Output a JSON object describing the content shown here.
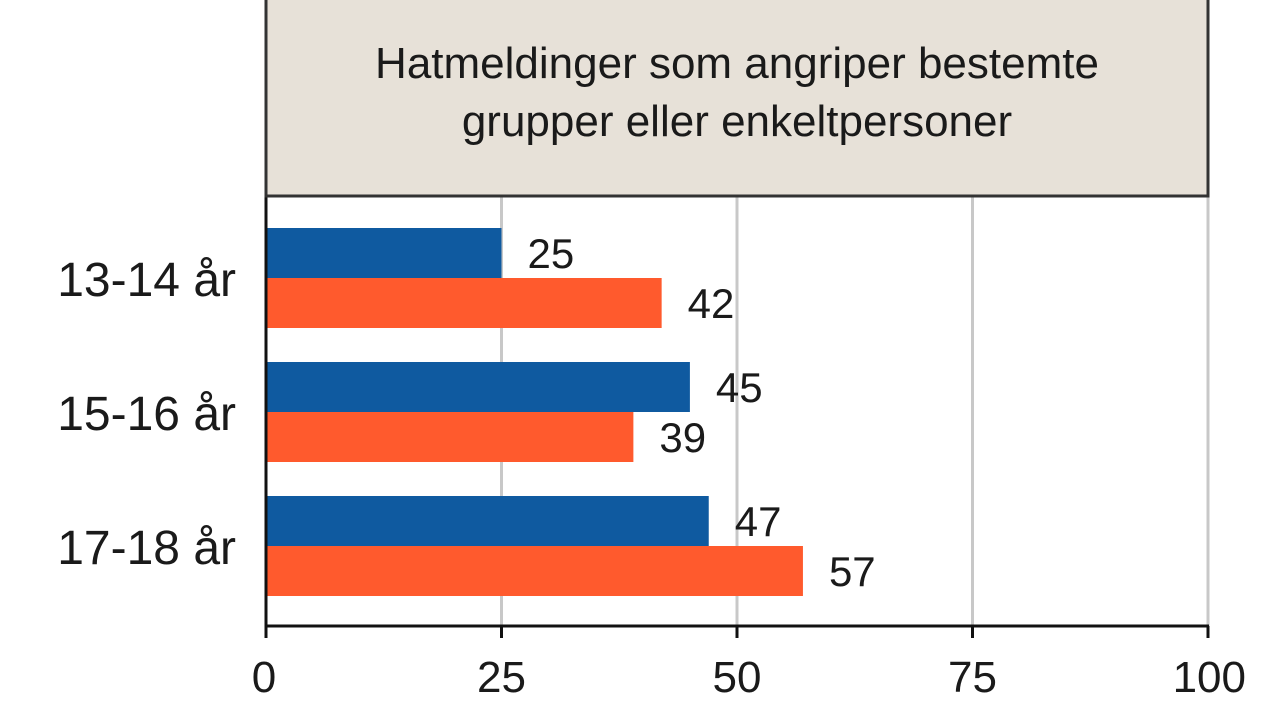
{
  "chart_data": {
    "type": "bar",
    "orientation": "horizontal",
    "title_lines": [
      "Hatmeldinger som angriper bestemte",
      "grupper eller enkeltpersoner"
    ],
    "categories": [
      "13-14 år",
      "15-16 år",
      "17-18 år"
    ],
    "series": [
      {
        "name": "series-blue",
        "color": "#0f5aa0",
        "values": [
          25,
          45,
          47
        ]
      },
      {
        "name": "series-orange",
        "color": "#ff5a2d",
        "values": [
          42,
          39,
          57
        ]
      }
    ],
    "xlim": [
      0,
      100
    ],
    "xticks": [
      0,
      25,
      50,
      75,
      100
    ],
    "xtick_labels": [
      "0",
      "25",
      "50",
      "75",
      "100"
    ],
    "grid": true,
    "title_background": "#e7e1d8",
    "grid_color": "#c8c8c8"
  }
}
